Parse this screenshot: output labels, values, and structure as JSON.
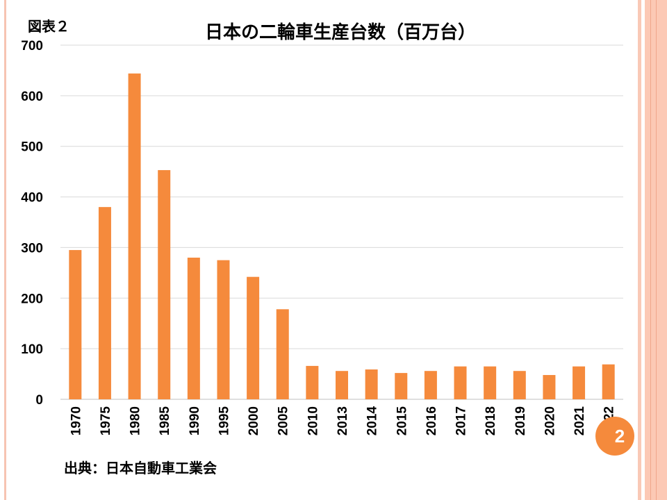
{
  "slide": {
    "figure_label": "図表２",
    "source": "出典：日本自動車工業会",
    "page_number": "2"
  },
  "colors": {
    "bar": "#f58a3c",
    "grid": "#d9d9d9",
    "border": "#fcc9b5"
  },
  "chart_data": {
    "type": "bar",
    "title": "日本の二輪車生産台数（百万台）",
    "categories": [
      "1970",
      "1975",
      "1980",
      "1985",
      "1990",
      "1995",
      "2000",
      "2005",
      "2010",
      "2013",
      "2014",
      "2015",
      "2016",
      "2017",
      "2018",
      "2019",
      "2020",
      "2021",
      "2022"
    ],
    "values": [
      295,
      380,
      644,
      453,
      280,
      275,
      242,
      178,
      66,
      56,
      59,
      52,
      56,
      65,
      65,
      56,
      48,
      65,
      69
    ],
    "xlabel": "",
    "ylabel": "",
    "ylim": [
      0,
      700
    ],
    "yticks": [
      0,
      100,
      200,
      300,
      400,
      500,
      600,
      700
    ],
    "grid": true,
    "legend": "none"
  }
}
